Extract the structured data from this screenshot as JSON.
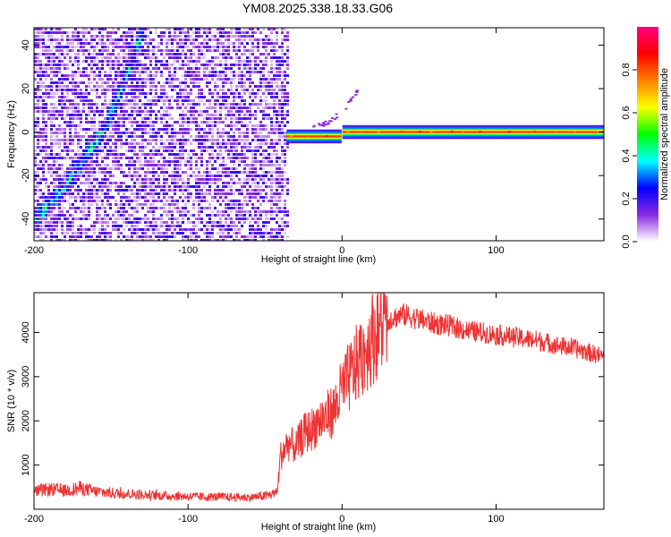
{
  "title": "YM08.2025.338.18.33.G06",
  "chart_data": [
    {
      "type": "heatmap",
      "xlabel": "Height of straight line (km)",
      "ylabel": "Frequency (Hz)",
      "xlim": [
        -200,
        170
      ],
      "ylim": [
        -50,
        48
      ],
      "x_ticks": [
        -200,
        -100,
        0,
        100
      ],
      "y_ticks": [
        -40,
        -20,
        0,
        20,
        40
      ],
      "x_tick_labels": [
        "-200",
        "-100",
        "0",
        "100"
      ],
      "y_tick_labels": [
        "-40",
        "-20",
        "0",
        "20",
        "40"
      ],
      "noise_region_x": [
        -200,
        -36
      ],
      "signal_band": {
        "x_start": -36,
        "x_end": 170,
        "frequency_before_zero": -2,
        "frequency_after_zero": 0
      },
      "chirp": {
        "x": [
          -200,
          -185,
          -170,
          -155,
          -140,
          -130
        ],
        "frequency": [
          -40,
          -28,
          -14,
          2,
          28,
          48
        ]
      },
      "faint_trail": {
        "x": [
          -20,
          -10,
          0,
          10
        ],
        "frequency": [
          2,
          5,
          10,
          20
        ]
      },
      "colorbar": {
        "label": "Normalized spectral amplitude",
        "range": [
          0,
          1
        ],
        "ticks": [
          0.0,
          0.2,
          0.4,
          0.6,
          0.8
        ],
        "tick_labels": [
          "0.0",
          "0.2",
          "0.4",
          "0.6",
          "0.8"
        ],
        "colors": [
          "#ffffff",
          "#8a2be2",
          "#0000ff",
          "#00ffff",
          "#00ff00",
          "#ffff00",
          "#ff8000",
          "#ff0000",
          "#ff0080"
        ]
      },
      "grid": false
    },
    {
      "type": "line",
      "xlabel": "Height of straight line (km)",
      "ylabel": "SNR (10 * v/v)",
      "xlim": [
        -200,
        170
      ],
      "ylim": [
        0,
        4900
      ],
      "x_ticks": [
        -200,
        -100,
        0,
        100
      ],
      "y_ticks": [
        1000,
        2000,
        3000,
        4000
      ],
      "x_tick_labels": [
        "-200",
        "-100",
        "0",
        "100"
      ],
      "y_tick_labels": [
        "1000",
        "2000",
        "3000",
        "4000"
      ],
      "series": [
        {
          "color": "#ee3333",
          "x": [
            -200,
            -190,
            -180,
            -170,
            -160,
            -150,
            -140,
            -130,
            -120,
            -110,
            -100,
            -90,
            -80,
            -70,
            -60,
            -50,
            -45,
            -42,
            -40,
            -35,
            -30,
            -25,
            -20,
            -15,
            -10,
            -5,
            0,
            5,
            10,
            15,
            20,
            25,
            30,
            35,
            40,
            50,
            60,
            70,
            80,
            90,
            100,
            110,
            120,
            130,
            140,
            150,
            160,
            170
          ],
          "y": [
            400,
            450,
            420,
            480,
            400,
            370,
            350,
            330,
            310,
            300,
            290,
            280,
            280,
            270,
            270,
            300,
            350,
            400,
            1200,
            1500,
            1400,
            1700,
            1800,
            2000,
            2100,
            2250,
            2700,
            3000,
            3300,
            3600,
            3900,
            4150,
            4300,
            4350,
            4400,
            4300,
            4200,
            4150,
            4050,
            4000,
            3950,
            3900,
            3850,
            3800,
            3700,
            3650,
            3550,
            3450
          ]
        }
      ],
      "grid": false
    }
  ]
}
